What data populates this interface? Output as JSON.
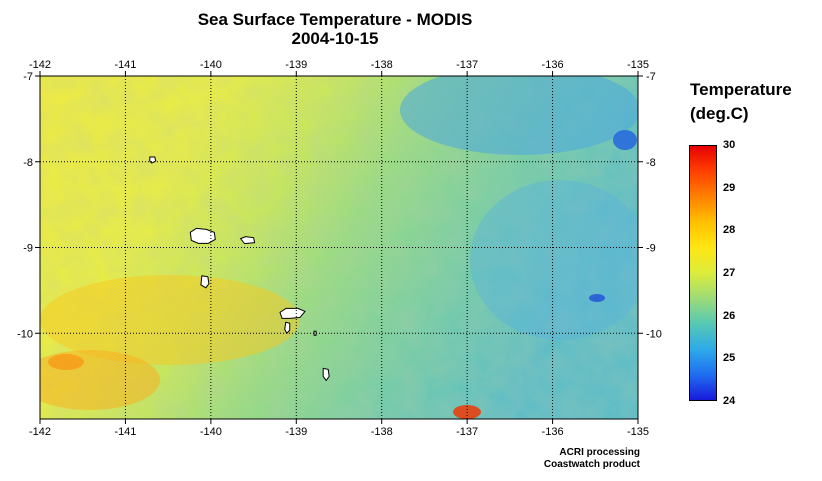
{
  "title": {
    "line1": "Sea Surface Temperature - MODIS",
    "line2": "2004-10-15"
  },
  "map": {
    "lon_range": [
      -142,
      -135
    ],
    "lat_range": [
      -11,
      -7
    ],
    "lon_ticks": [
      -142,
      -141,
      -140,
      -139,
      -138,
      -137,
      -136,
      -135
    ],
    "lat_ticks": [
      -7,
      -8,
      -9,
      -10
    ],
    "gridlines": "dotted",
    "land_color": "#ffffff",
    "islands": [
      {
        "name": "island-nuku-hiva",
        "lon": -140.1,
        "lat": -8.87
      },
      {
        "name": "island-ua-pou",
        "lon": -140.07,
        "lat": -9.4
      },
      {
        "name": "island-ua-huka",
        "lon": -139.57,
        "lat": -8.92
      },
      {
        "name": "island-hiva-oa",
        "lon": -139.05,
        "lat": -9.78
      },
      {
        "name": "island-tahuata",
        "lon": -139.1,
        "lat": -9.93
      },
      {
        "name": "island-fatu-hiva",
        "lon": -138.65,
        "lat": -10.48
      },
      {
        "name": "island-eiao",
        "lon": -140.68,
        "lat": -7.98
      },
      {
        "name": "island-motu-one",
        "lon": -138.78,
        "lat": -10.0
      }
    ]
  },
  "legend": {
    "title_line1": "Temperature",
    "title_line2": "(deg.C)",
    "range": [
      24,
      30
    ],
    "ticks": [
      24,
      25,
      26,
      27,
      28,
      29,
      30
    ],
    "colors": [
      "#1a1adc",
      "#1f6ef0",
      "#2eaae8",
      "#56c8b4",
      "#9cdc78",
      "#dcec3c",
      "#ffe614",
      "#ffc000",
      "#ff8000",
      "#ff4000",
      "#e80000"
    ]
  },
  "credits": {
    "line1": "ACRI processing",
    "line2": "Coastwatch product"
  }
}
